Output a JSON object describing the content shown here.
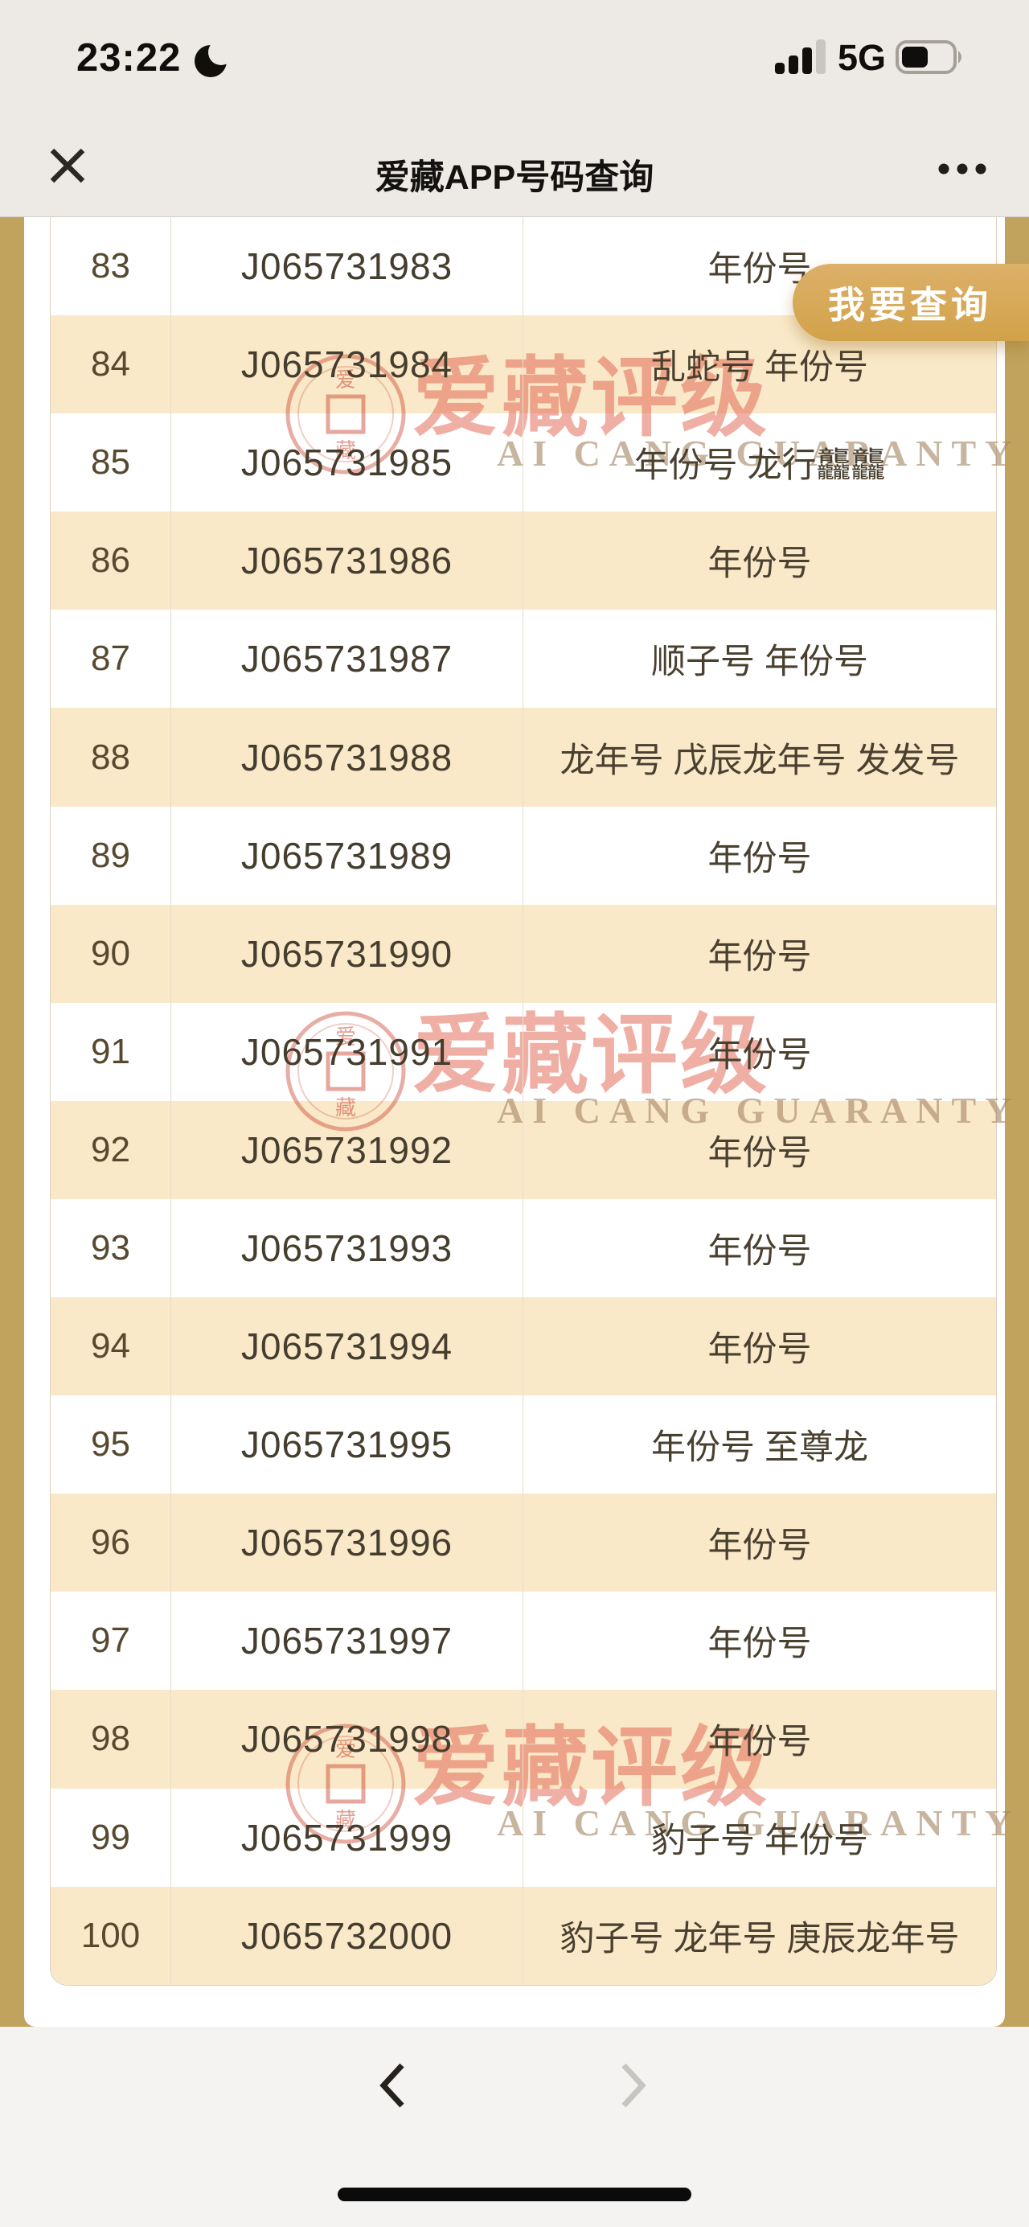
{
  "status_bar": {
    "time": "23:22",
    "network": "5G",
    "moon_icon": "crescent-moon",
    "signal_icon": "signal-bars-3-of-4",
    "battery_icon": "battery-about-45-percent"
  },
  "header": {
    "close_icon": "✕",
    "title": "爱藏APP号码查询",
    "more_icon": "•••"
  },
  "action_button": {
    "label": "我要查询"
  },
  "watermark": {
    "brand_cn": "爱藏评级",
    "brand_en": "AI CANG GUARANTY",
    "seal_top": "爱",
    "seal_bottom": "藏"
  },
  "table": {
    "rows": [
      {
        "no": "83",
        "serial": "J065731983",
        "tags": "年份号"
      },
      {
        "no": "84",
        "serial": "J065731984",
        "tags": "乱蛇号 年份号"
      },
      {
        "no": "85",
        "serial": "J065731985",
        "tags": "年份号 龙行龘龘"
      },
      {
        "no": "86",
        "serial": "J065731986",
        "tags": "年份号"
      },
      {
        "no": "87",
        "serial": "J065731987",
        "tags": "顺子号 年份号"
      },
      {
        "no": "88",
        "serial": "J065731988",
        "tags": "龙年号 戊辰龙年号 发发号"
      },
      {
        "no": "89",
        "serial": "J065731989",
        "tags": "年份号"
      },
      {
        "no": "90",
        "serial": "J065731990",
        "tags": "年份号"
      },
      {
        "no": "91",
        "serial": "J065731991",
        "tags": "年份号"
      },
      {
        "no": "92",
        "serial": "J065731992",
        "tags": "年份号"
      },
      {
        "no": "93",
        "serial": "J065731993",
        "tags": "年份号"
      },
      {
        "no": "94",
        "serial": "J065731994",
        "tags": "年份号"
      },
      {
        "no": "95",
        "serial": "J065731995",
        "tags": "年份号 至尊龙"
      },
      {
        "no": "96",
        "serial": "J065731996",
        "tags": "年份号"
      },
      {
        "no": "97",
        "serial": "J065731997",
        "tags": "年份号"
      },
      {
        "no": "98",
        "serial": "J065731998",
        "tags": "年份号"
      },
      {
        "no": "99",
        "serial": "J065731999",
        "tags": "豹子号 年份号"
      },
      {
        "no": "100",
        "serial": "J065732000",
        "tags": "豹子号 龙年号 庚辰龙年号"
      }
    ]
  },
  "pagination": {
    "prev_icon": "‹",
    "next_icon": "›",
    "prev_enabled": true,
    "next_enabled": false
  },
  "colors": {
    "header_bg": "#EDEAE5",
    "page_gold": "#C1A35E",
    "row_highlight": "#FAE9C9",
    "button_gold": "#D5A64F",
    "watermark_red": "#DF5842",
    "footer_bg": "#F4F3F1",
    "text_brown": "#4A4030"
  }
}
